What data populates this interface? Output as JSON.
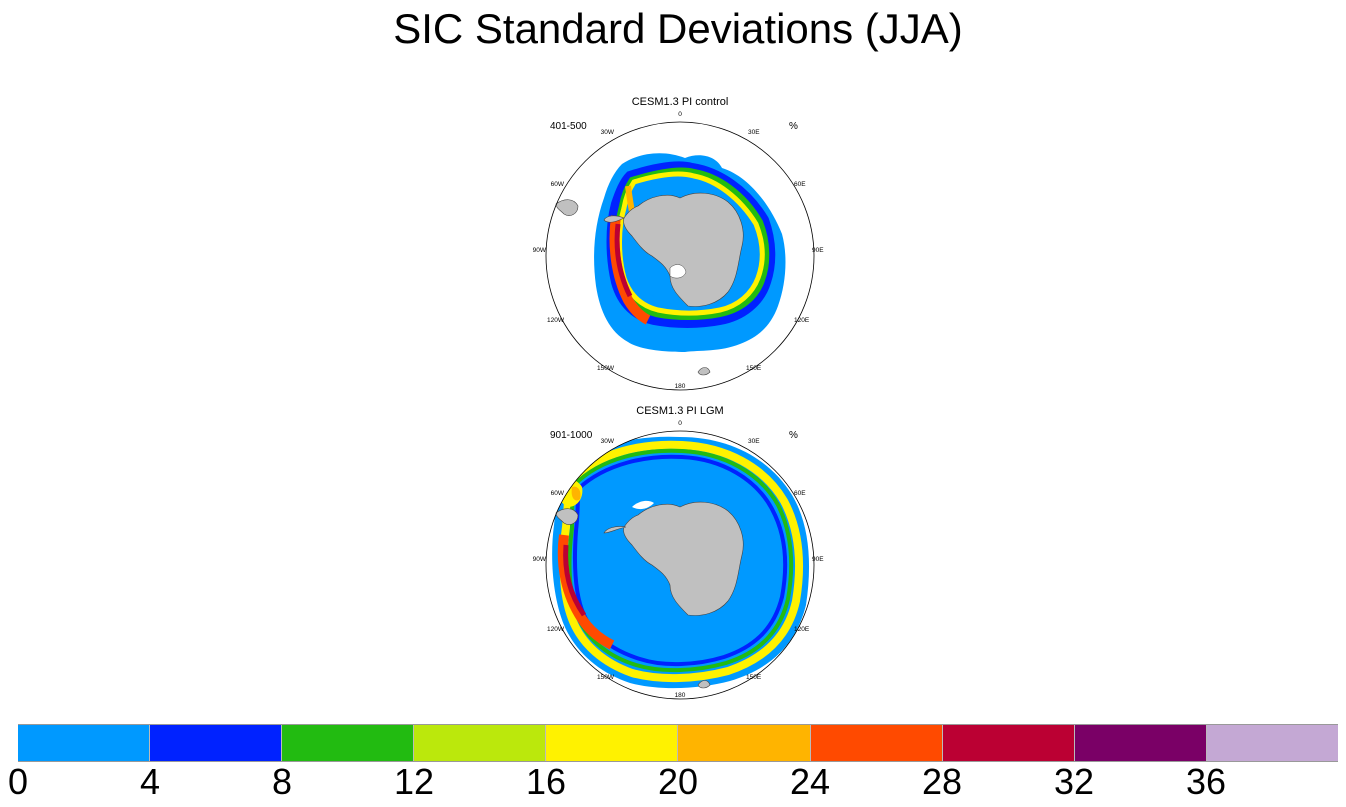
{
  "title": "SIC Standard Deviations (JJA)",
  "panels": [
    {
      "title": "CESM1.3 PI control",
      "subtitle": "401-500",
      "units": "%",
      "lon_labels": [
        "0",
        "30E",
        "60E",
        "90E",
        "120E",
        "150E",
        "180",
        "150W",
        "120W",
        "90W",
        "60W",
        "30W"
      ]
    },
    {
      "title": "CESM1.3 PI LGM",
      "subtitle": "901-1000",
      "units": "%",
      "lon_labels": [
        "0",
        "30E",
        "60E",
        "90E",
        "120E",
        "150E",
        "180",
        "150W",
        "120W",
        "90W",
        "60W",
        "30W"
      ]
    }
  ],
  "colorbar": {
    "labels": [
      "0",
      "4",
      "8",
      "12",
      "16",
      "20",
      "24",
      "28",
      "32",
      "36"
    ],
    "colors": [
      "#0099ff",
      "#0022ff",
      "#22bb11",
      "#bbe80c",
      "#fff200",
      "#ffb400",
      "#ff4a00",
      "#bb0033",
      "#7a0066",
      "#c4a8d4"
    ]
  },
  "colors": {
    "land": "#c0c0c0",
    "ocean": "#ffffff"
  }
}
